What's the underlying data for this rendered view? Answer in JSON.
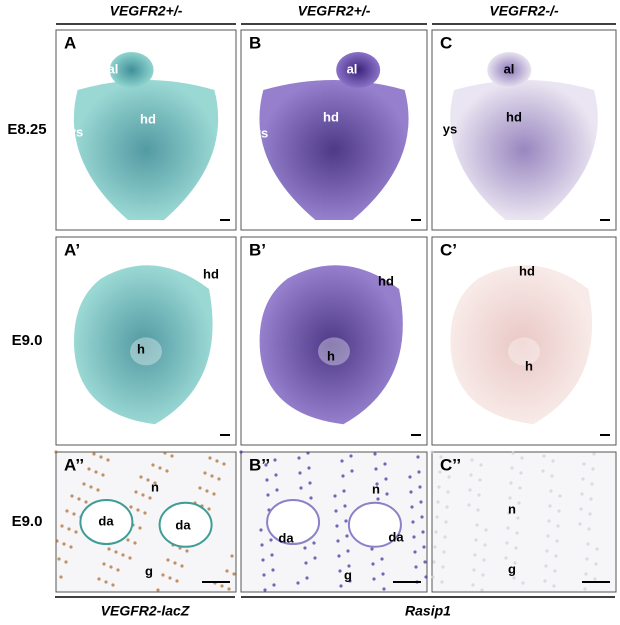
{
  "column_headers": [
    "VEGFR2+/-",
    "VEGFR2+/-",
    "VEGFR2-/-"
  ],
  "row_labels": [
    "E8.25",
    "E9.0",
    "E9.0"
  ],
  "panels": [
    {
      "letter": "A",
      "labels": [
        "al",
        "hd",
        "ys"
      ]
    },
    {
      "letter": "B",
      "labels": [
        "al",
        "hd",
        "ys"
      ]
    },
    {
      "letter": "C",
      "labels": [
        "al",
        "hd",
        "ys"
      ]
    },
    {
      "letter": "A’",
      "labels": [
        "hd",
        "h"
      ]
    },
    {
      "letter": "B’",
      "labels": [
        "hd",
        "h"
      ]
    },
    {
      "letter": "C’",
      "labels": [
        "hd",
        "h"
      ]
    },
    {
      "letter": "A’’",
      "labels": [
        "n",
        "da",
        "da",
        "g"
      ]
    },
    {
      "letter": "B’’",
      "labels": [
        "n",
        "da",
        "da",
        "g"
      ]
    },
    {
      "letter": "C’’",
      "labels": [
        "n",
        "g"
      ]
    }
  ],
  "footer_labels": [
    "VEGFR2-lacZ",
    "Rasip1"
  ]
}
